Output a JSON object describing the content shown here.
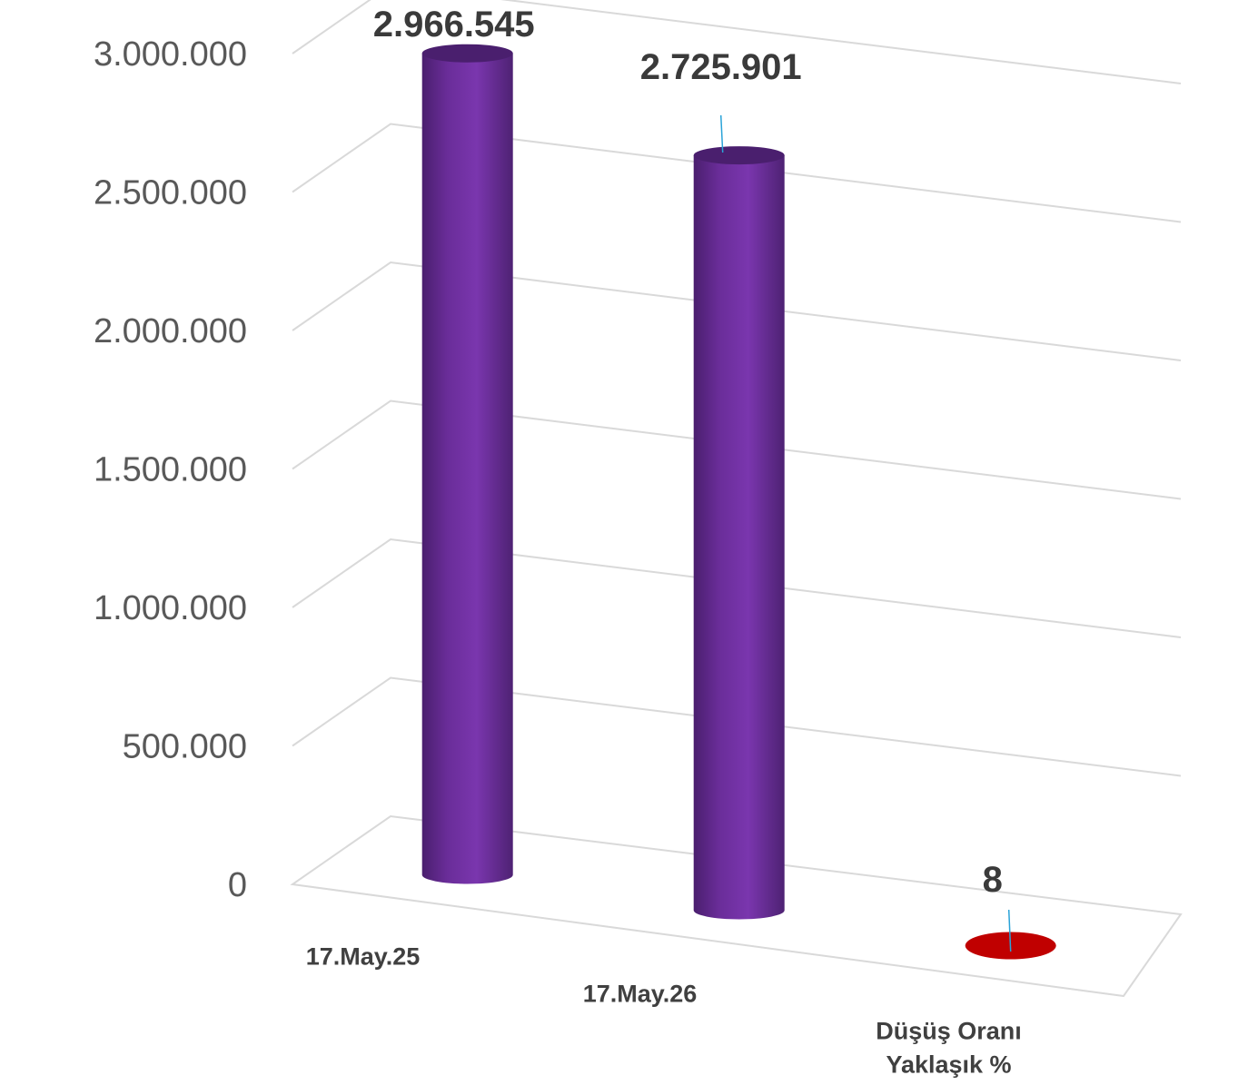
{
  "chart_data": {
    "type": "bar",
    "style": "3d-cylinder",
    "categories": [
      [
        "17.May.25"
      ],
      [
        "17.May.26"
      ],
      [
        "Düşüş Oranı",
        "Yaklaşık %"
      ]
    ],
    "values": [
      2966545,
      2725901,
      8
    ],
    "data_labels": [
      "2.966.545",
      "2.725.901",
      "8"
    ],
    "y_ticks": [
      "0",
      "500.000",
      "1.000.000",
      "1.500.000",
      "2.000.000",
      "2.500.000",
      "3.000.000"
    ],
    "ylim": [
      0,
      3000000
    ],
    "grid": true,
    "legend": "none",
    "colors": {
      "bar_primary": "#7030A0",
      "bar_highlight": "#9a55cc",
      "bar_shadow": "#4a1f6e",
      "bar_secondary": "#C00000",
      "grid": "#d9d9d9",
      "leader": "#2aa3d8"
    },
    "title": "",
    "xlabel": "",
    "ylabel": ""
  }
}
